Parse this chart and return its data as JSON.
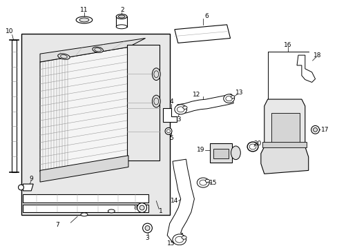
{
  "bg": "#ffffff",
  "lc": "#000000",
  "gray_fill": "#e8e8e8",
  "gray_mid": "#cccccc",
  "gray_dark": "#aaaaaa",
  "white": "#ffffff"
}
